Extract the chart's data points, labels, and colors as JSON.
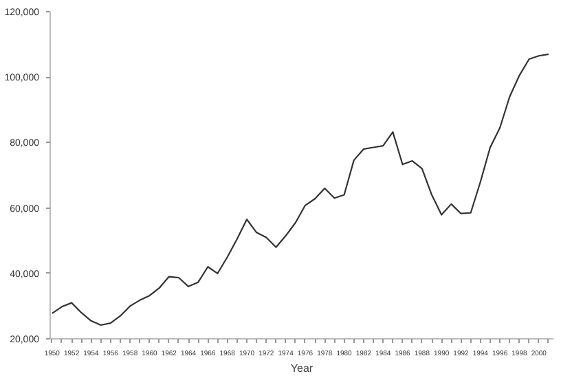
{
  "chart_data": {
    "type": "line",
    "xlabel": "Year",
    "x": [
      1950,
      1951,
      1952,
      1953,
      1954,
      1955,
      1956,
      1957,
      1958,
      1959,
      1960,
      1961,
      1962,
      1963,
      1964,
      1965,
      1966,
      1967,
      1968,
      1969,
      1970,
      1971,
      1972,
      1973,
      1974,
      1975,
      1976,
      1977,
      1978,
      1979,
      1980,
      1981,
      1982,
      1983,
      1984,
      1985,
      1986,
      1987,
      1988,
      1989,
      1990,
      1991,
      1992,
      1993,
      1994,
      1995,
      1996,
      1997,
      1998,
      1999,
      2000,
      2001
    ],
    "series": [
      {
        "color": "#333333",
        "values": [
          27800,
          29800,
          31000,
          28000,
          25500,
          24200,
          24800,
          27000,
          30000,
          31800,
          33200,
          35500,
          39000,
          38700,
          36000,
          37300,
          42000,
          40000,
          45000,
          50500,
          56500,
          52500,
          51000,
          48000,
          51500,
          55500,
          60800,
          62800,
          66000,
          63000,
          64000,
          74600,
          78000,
          78500,
          79000,
          83200,
          73300,
          74400,
          72000,
          64000,
          57900,
          61200,
          58300,
          58500,
          68000,
          78500,
          84500,
          94000,
          100500,
          105500,
          106500,
          107000
        ]
      }
    ],
    "xlim": [
      1949.8,
      2001.5
    ],
    "xticks": [
      1950,
      {
        "value": 1951,
        "label": null
      },
      1952,
      {
        "value": 1953,
        "label": null
      },
      1954,
      {
        "value": 1955,
        "label": null
      },
      1956,
      {
        "value": 1957,
        "label": null
      },
      1958,
      {
        "value": 1959,
        "label": null
      },
      1960,
      {
        "value": 1961,
        "label": null
      },
      1962,
      {
        "value": 1963,
        "label": null
      },
      1964,
      {
        "value": 1965,
        "label": null
      },
      1966,
      {
        "value": 1967,
        "label": null
      },
      1968,
      {
        "value": 1969,
        "label": null
      },
      1970,
      {
        "value": 1971,
        "label": null
      },
      1972,
      {
        "value": 1973,
        "label": null
      },
      1974,
      {
        "value": 1975,
        "label": null
      },
      1976,
      {
        "value": 1977,
        "label": null
      },
      1978,
      {
        "value": 1979,
        "label": null
      },
      1980,
      {
        "value": 1981,
        "label": null
      },
      1982,
      {
        "value": 1983,
        "label": null
      },
      1984,
      {
        "value": 1985,
        "label": null
      },
      1986,
      {
        "value": 1987,
        "label": null
      },
      1988,
      {
        "value": 1989,
        "label": null
      },
      1990,
      {
        "value": 1991,
        "label": null
      },
      1992,
      {
        "value": 1993,
        "label": null
      },
      1994,
      {
        "value": 1995,
        "label": null
      },
      1996,
      {
        "value": 1997,
        "label": null
      },
      1998,
      {
        "value": 1999,
        "label": null
      },
      2000,
      {
        "value": 2001,
        "label": null
      }
    ],
    "ylim": [
      20000,
      120000
    ],
    "yticks": [
      {
        "value": 20000,
        "label": "20,000"
      },
      {
        "value": 40000,
        "label": "40,000"
      },
      {
        "value": 60000,
        "label": "60,000"
      },
      {
        "value": 80000,
        "label": "80,000"
      },
      {
        "value": 100000,
        "label": "100,000"
      },
      {
        "value": 120000,
        "label": "120,000"
      }
    ],
    "grid": false,
    "line_style": "solid"
  }
}
